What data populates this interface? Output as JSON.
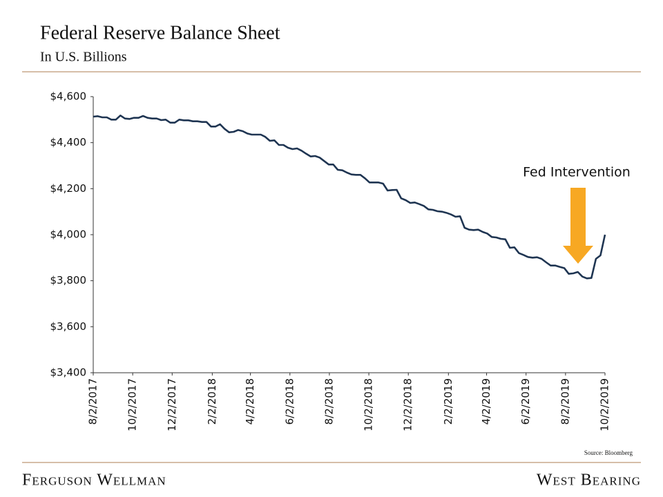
{
  "chart_data": {
    "type": "line",
    "title": "Federal Reserve Balance Sheet",
    "subtitle": "In U.S. Billions",
    "annotation": "Fed Intervention",
    "source": "Source: Bloomberg",
    "color": "#1f3552",
    "x": [
      "2017-08-02",
      "2017-08-09",
      "2017-08-16",
      "2017-08-23",
      "2017-08-30",
      "2017-09-06",
      "2017-09-13",
      "2017-09-20",
      "2017-09-27",
      "2017-10-04",
      "2017-10-11",
      "2017-10-18",
      "2017-10-25",
      "2017-11-01",
      "2017-11-08",
      "2017-11-15",
      "2017-11-22",
      "2017-11-29",
      "2017-12-06",
      "2017-12-13",
      "2017-12-20",
      "2017-12-27",
      "2018-01-03",
      "2018-01-10",
      "2018-01-17",
      "2018-01-24",
      "2018-01-31",
      "2018-02-07",
      "2018-02-14",
      "2018-02-21",
      "2018-02-28",
      "2018-03-07",
      "2018-03-14",
      "2018-03-21",
      "2018-03-28",
      "2018-04-04",
      "2018-04-11",
      "2018-04-18",
      "2018-04-25",
      "2018-05-02",
      "2018-05-09",
      "2018-05-16",
      "2018-05-23",
      "2018-05-30",
      "2018-06-06",
      "2018-06-13",
      "2018-06-20",
      "2018-06-27",
      "2018-07-04",
      "2018-07-11",
      "2018-07-18",
      "2018-07-25",
      "2018-08-01",
      "2018-08-08",
      "2018-08-15",
      "2018-08-22",
      "2018-08-29",
      "2018-09-05",
      "2018-09-12",
      "2018-09-19",
      "2018-09-26",
      "2018-10-03",
      "2018-10-10",
      "2018-10-17",
      "2018-10-24",
      "2018-10-31",
      "2018-11-07",
      "2018-11-14",
      "2018-11-21",
      "2018-11-28",
      "2018-12-05",
      "2018-12-12",
      "2018-12-19",
      "2018-12-26",
      "2019-01-02",
      "2019-01-09",
      "2019-01-16",
      "2019-01-23",
      "2019-01-30",
      "2019-02-06",
      "2019-02-13",
      "2019-02-20",
      "2019-02-27",
      "2019-03-06",
      "2019-03-13",
      "2019-03-20",
      "2019-03-27",
      "2019-04-03",
      "2019-04-10",
      "2019-04-17",
      "2019-04-24",
      "2019-05-01",
      "2019-05-08",
      "2019-05-15",
      "2019-05-22",
      "2019-05-29",
      "2019-06-05",
      "2019-06-12",
      "2019-06-19",
      "2019-06-26",
      "2019-07-03",
      "2019-07-10",
      "2019-07-17",
      "2019-07-24",
      "2019-07-31",
      "2019-08-07",
      "2019-08-14",
      "2019-08-21",
      "2019-08-28",
      "2019-09-04",
      "2019-09-11",
      "2019-09-18",
      "2019-09-25",
      "2019-10-02"
    ],
    "values": [
      4513,
      4515,
      4510,
      4510,
      4500,
      4500,
      4518,
      4505,
      4503,
      4508,
      4508,
      4516,
      4508,
      4505,
      4505,
      4498,
      4500,
      4487,
      4487,
      4500,
      4497,
      4497,
      4493,
      4493,
      4490,
      4490,
      4470,
      4470,
      4480,
      4460,
      4445,
      4447,
      4455,
      4450,
      4440,
      4435,
      4435,
      4435,
      4425,
      4408,
      4410,
      4390,
      4390,
      4378,
      4372,
      4375,
      4365,
      4352,
      4340,
      4342,
      4335,
      4320,
      4305,
      4305,
      4282,
      4280,
      4270,
      4262,
      4260,
      4260,
      4245,
      4227,
      4227,
      4227,
      4222,
      4192,
      4194,
      4195,
      4158,
      4150,
      4138,
      4140,
      4133,
      4125,
      4110,
      4108,
      4102,
      4100,
      4095,
      4088,
      4078,
      4080,
      4030,
      4022,
      4020,
      4022,
      4012,
      4005,
      3990,
      3988,
      3982,
      3980,
      3943,
      3945,
      3920,
      3912,
      3903,
      3900,
      3902,
      3895,
      3880,
      3866,
      3866,
      3860,
      3855,
      3830,
      3832,
      3838,
      3818,
      3810,
      3812,
      3895,
      3910,
      4000
    ],
    "xlim": [
      "2017-08-02",
      "2019-10-02"
    ],
    "xticks": [
      {
        "value": "2017-08-02",
        "label": "8/2/2017"
      },
      {
        "value": "2017-10-02",
        "label": "10/2/2017"
      },
      {
        "value": "2017-12-02",
        "label": "12/2/2017"
      },
      {
        "value": "2018-02-02",
        "label": "2/2/2018"
      },
      {
        "value": "2018-04-02",
        "label": "4/2/2018"
      },
      {
        "value": "2018-06-02",
        "label": "6/2/2018"
      },
      {
        "value": "2018-08-02",
        "label": "8/2/2018"
      },
      {
        "value": "2018-10-02",
        "label": "10/2/2018"
      },
      {
        "value": "2018-12-02",
        "label": "12/2/2018"
      },
      {
        "value": "2019-02-02",
        "label": "2/2/2019"
      },
      {
        "value": "2019-04-02",
        "label": "4/2/2019"
      },
      {
        "value": "2019-06-02",
        "label": "6/2/2019"
      },
      {
        "value": "2019-08-02",
        "label": "8/2/2019"
      },
      {
        "value": "2019-10-02",
        "label": "10/2/2019"
      }
    ],
    "ylim": [
      3400,
      4600
    ],
    "yticks": [
      {
        "value": 3400,
        "label": "$3,400"
      },
      {
        "value": 3600,
        "label": "$3,600"
      },
      {
        "value": 3800,
        "label": "$3,800"
      },
      {
        "value": 4000,
        "label": "$4,000"
      },
      {
        "value": 4200,
        "label": "$4,200"
      },
      {
        "value": 4400,
        "label": "$4,400"
      },
      {
        "value": 4600,
        "label": "$4,600"
      }
    ],
    "grid": false
  },
  "footer": {
    "left": "Ferguson Wellman",
    "right": "West Bearing"
  }
}
